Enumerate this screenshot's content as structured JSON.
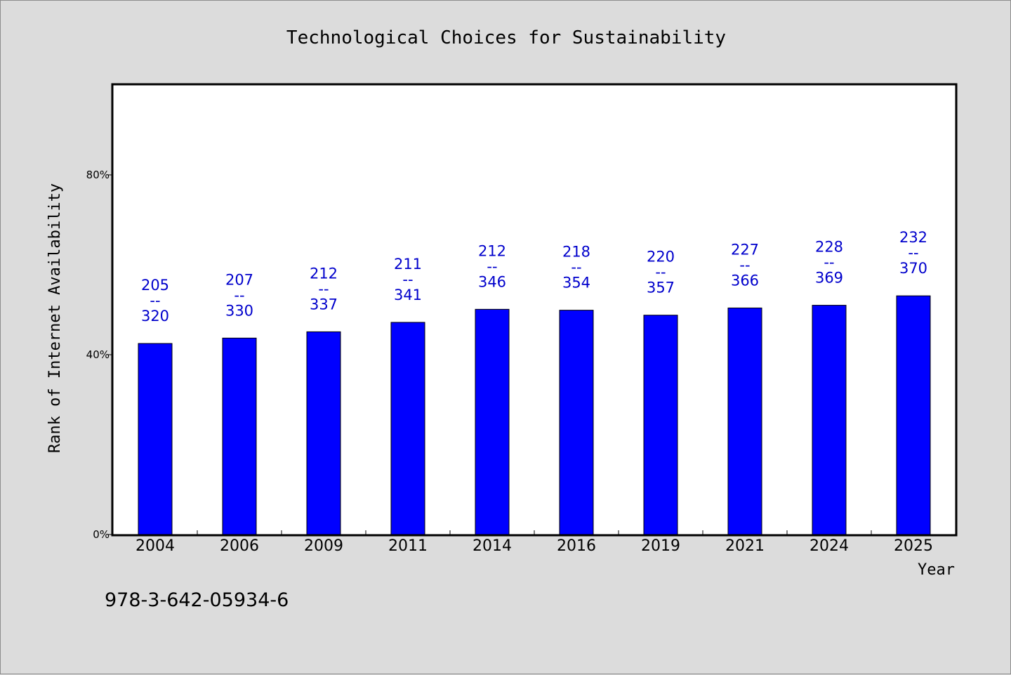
{
  "chart_data": {
    "type": "bar",
    "title": "Technological Choices for Sustainability",
    "xlabel": "Year",
    "ylabel": "Rank of Internet Availability",
    "categories": [
      "2004",
      "2006",
      "2009",
      "2011",
      "2014",
      "2016",
      "2019",
      "2021",
      "2024",
      "2025"
    ],
    "series": [
      {
        "values": [
          42.5,
          43.7,
          45.1,
          47.2,
          50.1,
          49.9,
          48.8,
          50.4,
          51.0,
          53.1
        ]
      }
    ],
    "data_labels": [
      {
        "top": "205",
        "sep": "--",
        "bottom": "320"
      },
      {
        "top": "207",
        "sep": "--",
        "bottom": "330"
      },
      {
        "top": "212",
        "sep": "--",
        "bottom": "337"
      },
      {
        "top": "211",
        "sep": "--",
        "bottom": "341"
      },
      {
        "top": "212",
        "sep": "--",
        "bottom": "346"
      },
      {
        "top": "218",
        "sep": "--",
        "bottom": "354"
      },
      {
        "top": "220",
        "sep": "--",
        "bottom": "357"
      },
      {
        "top": "227",
        "sep": "--",
        "bottom": "366"
      },
      {
        "top": "228",
        "sep": "--",
        "bottom": "369"
      },
      {
        "top": "232",
        "sep": "--",
        "bottom": "370"
      }
    ],
    "yticks": [
      {
        "value": 0,
        "label": "0%"
      },
      {
        "value": 40,
        "label": "40%"
      },
      {
        "value": 80,
        "label": "80%"
      }
    ],
    "ylim": [
      0,
      100
    ],
    "grid": false,
    "bar_color": "#0000ff",
    "label_color": "#0000cc"
  },
  "footer": {
    "isbn": "978-3-642-05934-6"
  }
}
